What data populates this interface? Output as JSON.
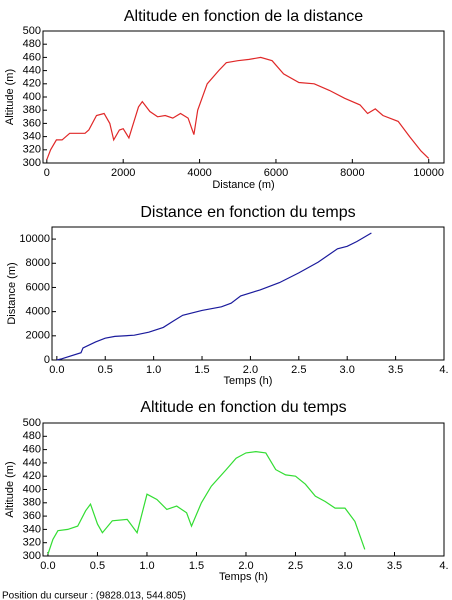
{
  "chart_data": [
    {
      "type": "line",
      "title": "Altitude en fonction de la distance",
      "x_label": "Distance (m)",
      "y_label": "Altitude (m)",
      "x": [
        0,
        100,
        250,
        400,
        600,
        1000,
        1100,
        1300,
        1500,
        1650,
        1750,
        1900,
        2000,
        2150,
        2400,
        2500,
        2700,
        2900,
        3100,
        3300,
        3500,
        3700,
        3850,
        3950,
        4200,
        4500,
        4700,
        5000,
        5300,
        5600,
        5900,
        6200,
        6600,
        7000,
        7400,
        7800,
        8200,
        8400,
        8600,
        8800,
        9200,
        9500,
        9800,
        10000
      ],
      "series": [
        {
          "name": "Altitude",
          "color": "#e02828",
          "values": [
            305,
            320,
            335,
            335,
            345,
            345,
            350,
            372,
            375,
            360,
            335,
            350,
            352,
            338,
            385,
            393,
            378,
            370,
            372,
            368,
            375,
            368,
            343,
            380,
            420,
            440,
            452,
            455,
            457,
            460,
            455,
            435,
            422,
            420,
            410,
            398,
            388,
            375,
            382,
            372,
            363,
            340,
            318,
            307
          ]
        }
      ],
      "xlim": [
        -100,
        10400
      ],
      "xticks": [
        0,
        2000,
        4000,
        6000,
        8000,
        10000
      ],
      "ylim": [
        300,
        500
      ],
      "yticks": [
        300,
        320,
        340,
        360,
        380,
        400,
        420,
        440,
        460,
        480,
        500
      ]
    },
    {
      "type": "line",
      "title": "Distance en fonction du temps",
      "x_label": "Temps (h)",
      "y_label": "Distance (m)",
      "x": [
        0,
        0.05,
        0.25,
        0.27,
        0.4,
        0.5,
        0.6,
        0.8,
        0.95,
        1.1,
        1.2,
        1.3,
        1.5,
        1.7,
        1.8,
        1.9,
        2.1,
        2.3,
        2.5,
        2.7,
        2.9,
        3.0,
        3.1,
        3.25
      ],
      "series": [
        {
          "name": "Distance",
          "color": "#1a1a9c",
          "values": [
            0,
            100,
            600,
            1000,
            1500,
            1800,
            1950,
            2050,
            2300,
            2700,
            3200,
            3700,
            4100,
            4400,
            4700,
            5300,
            5800,
            6400,
            7200,
            8100,
            9200,
            9400,
            9800,
            10500
          ]
        }
      ],
      "xlim": [
        -0.05,
        4.0
      ],
      "xticks": [
        {
          "value": 0,
          "label": "0.0"
        },
        0.5,
        {
          "value": 1,
          "label": "1.0"
        },
        1.5,
        {
          "value": 2,
          "label": "2.0"
        },
        2.5,
        {
          "value": 3,
          "label": "3.0"
        },
        3.5,
        {
          "value": 4,
          "label": "4."
        }
      ],
      "ylim": [
        0,
        11000
      ],
      "yticks": [
        0,
        2000,
        4000,
        6000,
        8000,
        10000
      ]
    },
    {
      "type": "line",
      "title": "Altitude en fonction du temps",
      "x_label": "Temps (h)",
      "y_label": "Altitude (m)",
      "x": [
        0,
        0.05,
        0.1,
        0.2,
        0.3,
        0.38,
        0.43,
        0.5,
        0.55,
        0.65,
        0.8,
        0.9,
        1.0,
        1.1,
        1.2,
        1.3,
        1.4,
        1.45,
        1.55,
        1.65,
        1.8,
        1.9,
        2.0,
        2.1,
        2.2,
        2.3,
        2.4,
        2.5,
        2.6,
        2.7,
        2.8,
        2.9,
        3.0,
        3.1,
        3.2
      ],
      "series": [
        {
          "name": "Altitude",
          "color": "#33dd33",
          "values": [
            303,
            325,
            338,
            340,
            345,
            368,
            378,
            348,
            335,
            353,
            355,
            335,
            393,
            385,
            370,
            375,
            365,
            345,
            380,
            405,
            430,
            447,
            455,
            457,
            455,
            430,
            422,
            420,
            408,
            390,
            382,
            372,
            372,
            352,
            310
          ]
        }
      ],
      "xlim": [
        -0.05,
        4.0
      ],
      "xticks": [
        {
          "value": 0,
          "label": "0.0"
        },
        0.5,
        {
          "value": 1,
          "label": "1.0"
        },
        1.5,
        {
          "value": 2,
          "label": "2.0"
        },
        2.5,
        {
          "value": 3,
          "label": "3.0"
        },
        3.5,
        {
          "value": 4,
          "label": "4."
        }
      ],
      "ylim": [
        300,
        500
      ],
      "yticks": [
        300,
        320,
        340,
        360,
        380,
        400,
        420,
        440,
        460,
        480,
        500
      ]
    }
  ],
  "status_bar": {
    "text": "Position du curseur : (9828.013, 544.805)"
  }
}
